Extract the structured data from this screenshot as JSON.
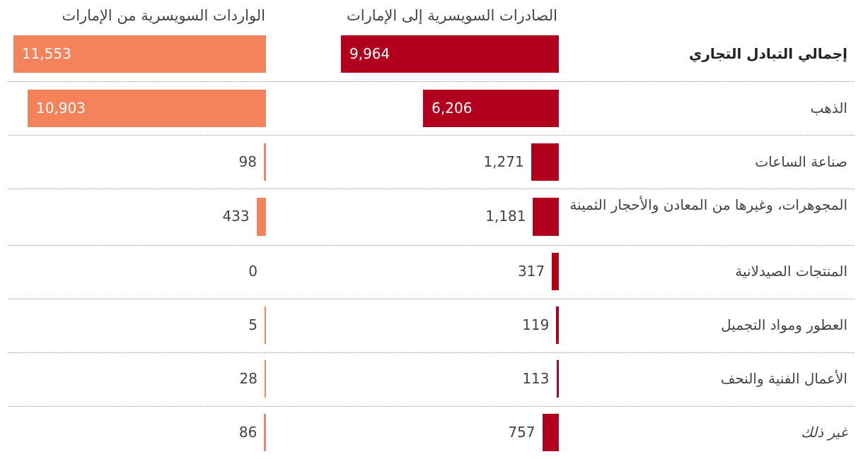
{
  "headers": {
    "exports": "الصادرات السويسرية إلى الإمارات",
    "imports": "الواردات السويسرية من الإمارات"
  },
  "colors": {
    "exports": "#b0001e",
    "imports": "#f4825a"
  },
  "chart_data": {
    "type": "bar",
    "orientation": "horizontal",
    "categories": [
      "إجمالي التبادل التجاري",
      "الذهب",
      "صناعة الساعات",
      "المجوهرات، وغيرها من المعادن والأحجار الثمينة",
      "المنتجات الصيدلانية",
      "العطور ومواد التجميل",
      "الأعمال الفنية والنحف",
      "غير ذلك"
    ],
    "series": [
      {
        "name": "الصادرات السويسرية إلى الإمارات",
        "values": [
          9964,
          6206,
          1271,
          1181,
          317,
          119,
          113,
          757
        ]
      },
      {
        "name": "الواردات السويسرية من الإمارات",
        "values": [
          11553,
          10903,
          98,
          433,
          0,
          5,
          28,
          86
        ]
      }
    ],
    "value_labels": {
      "exports": [
        "9,964",
        "6,206",
        "1,271",
        "1,181",
        "317",
        "119",
        "113",
        "757"
      ],
      "imports": [
        "11,553",
        "10,903",
        "98",
        "433",
        "0",
        "5",
        "28",
        "86"
      ]
    }
  }
}
